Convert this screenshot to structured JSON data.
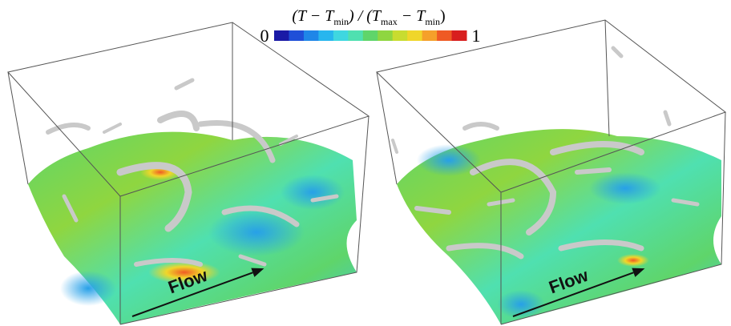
{
  "colorbar": {
    "label": [
      "(T − T",
      "min",
      ") / (T",
      "max",
      " − T",
      "min",
      ")"
    ],
    "min": 0,
    "max": 1,
    "colors": [
      "#1a1aa6",
      "#1f4fd8",
      "#1f86e8",
      "#27b6ee",
      "#3fd7e0",
      "#4fe0b0",
      "#5fd56a",
      "#8fd640",
      "#c8dc30",
      "#f0d62a",
      "#f5a02a",
      "#ef5a24",
      "#d81e1e"
    ]
  },
  "panels": [
    {
      "arrow_label": "Flow"
    },
    {
      "arrow_label": "Flow"
    }
  ]
}
